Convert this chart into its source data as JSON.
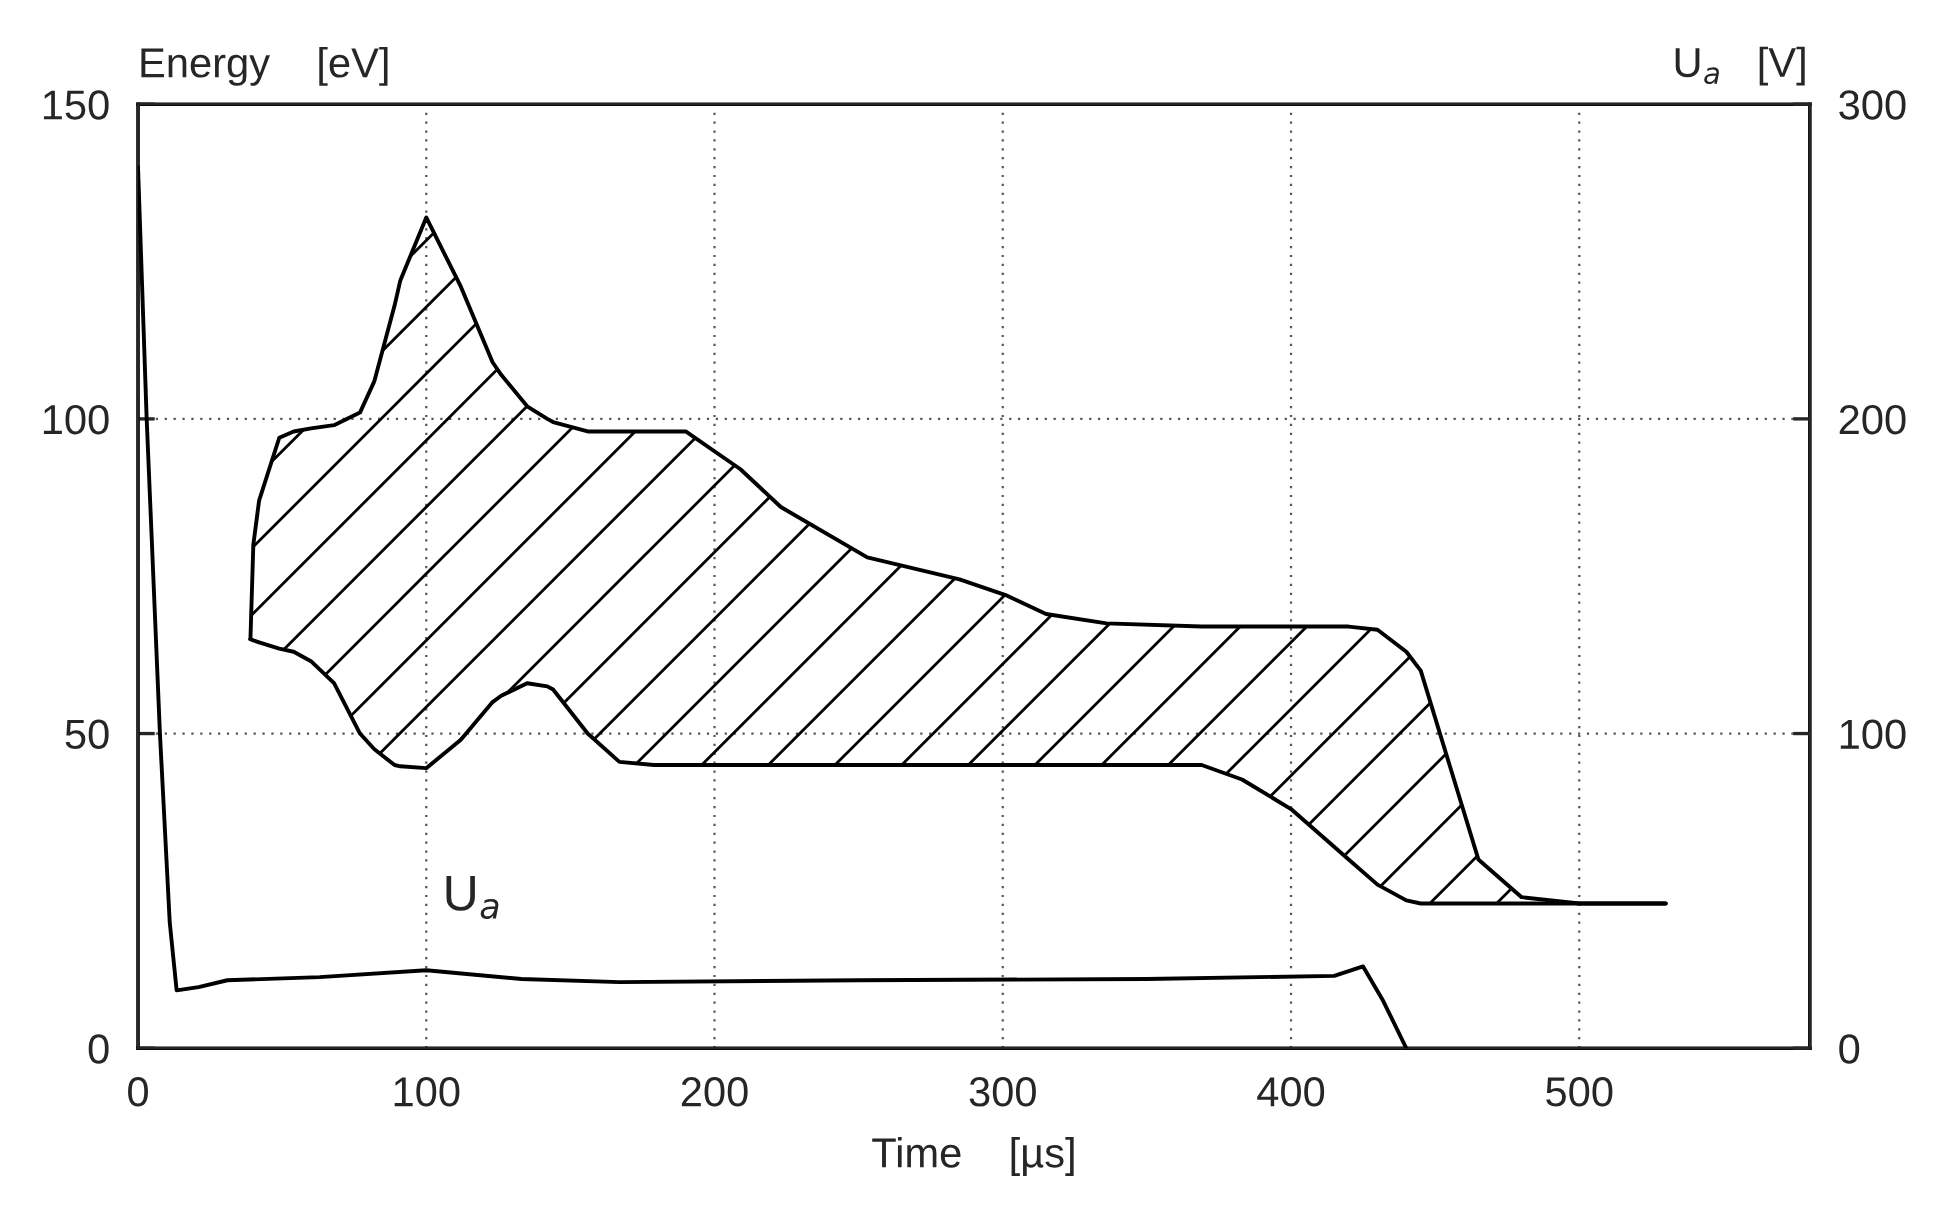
{
  "chart_data": {
    "type": "line",
    "xlabel": "Time    [µs]",
    "ylabel": "Energy    [eV]",
    "y2label": "U$_{a}$   [V]",
    "xlim": [
      0,
      580
    ],
    "xticks": [
      0,
      100,
      200,
      300,
      400,
      500
    ],
    "ylim": [
      0,
      150
    ],
    "yticks": [
      0,
      50,
      100,
      150
    ],
    "y2lim": [
      0,
      300
    ],
    "y2ticks": [
      0,
      100,
      200,
      300
    ],
    "grid": true,
    "annotations": [
      "U$_{a}$"
    ],
    "series": [
      {
        "type": "area",
        "color": "#000000",
        "x": [
          39,
          40,
          42,
          49,
          54,
          60,
          68,
          77,
          82,
          89,
          91,
          100,
          112,
          123,
          126,
          135,
          142,
          144,
          156,
          167,
          179,
          190,
          209,
          223,
          253,
          285,
          301,
          315,
          336,
          369,
          383,
          400,
          420,
          430,
          440,
          445,
          455,
          465,
          480,
          500,
          530
        ],
        "values": [
          65,
          80,
          87,
          97,
          98,
          98.5,
          99,
          101,
          106,
          118,
          122,
          132,
          121,
          109,
          107,
          102,
          100,
          99.5,
          98,
          98,
          98,
          98,
          92,
          86,
          78,
          74.5,
          72,
          69,
          67.5,
          67,
          67,
          67,
          67,
          66.5,
          63,
          60,
          45,
          30,
          24,
          23,
          23
        ]
      },
      {
        "color": "#000000",
        "x": [
          39,
          40,
          42,
          49,
          54,
          60,
          68,
          77,
          82,
          89,
          91,
          100,
          112,
          123,
          126,
          135,
          142,
          144,
          156,
          167,
          179,
          190,
          209,
          223,
          253,
          285,
          301,
          315,
          336,
          369,
          383,
          400,
          420,
          430,
          440,
          445,
          455,
          465,
          480,
          500,
          530
        ],
        "values": [
          65,
          64.8,
          64.5,
          63.5,
          63,
          61.5,
          58,
          50,
          47.5,
          45,
          44.8,
          44.5,
          49,
          55,
          56,
          58,
          57.5,
          57,
          50,
          45.5,
          45,
          45,
          45,
          45,
          45,
          45,
          45,
          45,
          45,
          45,
          42.7,
          38,
          30,
          26,
          23.5,
          23,
          23,
          23,
          23,
          23,
          23
        ]
      },
      {
        "axis": "y2",
        "color": "#000000",
        "x": [
          0,
          3,
          7.6,
          11,
          13.4,
          21,
          31,
          63,
          100,
          133,
          167,
          250,
          350,
          415,
          425,
          432,
          440
        ],
        "values": [
          280,
          200,
          100,
          40,
          18.4,
          19.4,
          21.6,
          22.6,
          24.8,
          22,
          21,
          21.6,
          22,
          23,
          26,
          15,
          0
        ]
      }
    ]
  }
}
